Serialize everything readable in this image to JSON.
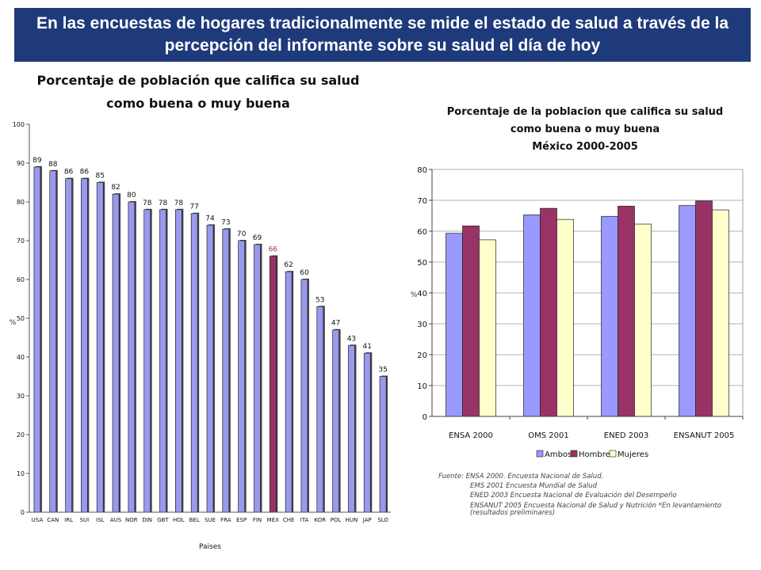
{
  "banner": {
    "text": "En las encuestas de hogares tradicionalmente se mide el estado de salud a través de la percepción del informante sobre su salud el día de hoy"
  },
  "colors": {
    "banner_bg": "#1f3a7a",
    "bar_default": "#9999ee",
    "bar_highlight": "#993366",
    "mex_label": "#993366",
    "ambos": "#9999ff",
    "hombres": "#993366",
    "mujeres": "#ffffcc"
  },
  "chart_data": [
    {
      "type": "bar",
      "title_line1": "Porcentaje de población que califica su salud",
      "title_line2": "como buena o muy buena",
      "xlabel": "Paises",
      "ylabel": "%",
      "ylim": [
        0,
        100
      ],
      "yticks": [
        0,
        10,
        20,
        30,
        40,
        50,
        60,
        70,
        80,
        90,
        100
      ],
      "grid": false,
      "highlight": "MEX",
      "categories": [
        "USA",
        "CAN",
        "IRL",
        "SUI",
        "ISL",
        "AUS",
        "NOR",
        "DIN",
        "GBT",
        "HOL",
        "BEL",
        "SUE",
        "FRA",
        "ESP",
        "FIN",
        "MEX",
        "CHE",
        "ITA",
        "KOR",
        "POL",
        "HUN",
        "JAP",
        "SLO"
      ],
      "values": [
        89,
        88,
        86,
        86,
        85,
        82,
        80,
        78,
        78,
        78,
        77,
        74,
        73,
        70,
        69,
        66,
        62,
        60,
        53,
        47,
        43,
        41,
        35
      ]
    },
    {
      "type": "bar",
      "title_line1": "Porcentaje de la poblacion que califica su salud",
      "title_line2": "como buena o muy buena",
      "title_line3": "México 2000-2005",
      "xlabel": "",
      "ylabel": "%",
      "ylim": [
        0,
        80
      ],
      "yticks": [
        0,
        10,
        20,
        30,
        40,
        50,
        60,
        70,
        80
      ],
      "grid": true,
      "legend": "bottom",
      "categories": [
        "ENSA 2000",
        "OMS 2001",
        "ENED 2003",
        "ENSANUT 2005"
      ],
      "series": [
        {
          "name": "Ambos",
          "values": [
            59.3,
            65.3,
            64.8,
            68.3
          ]
        },
        {
          "name": "Hombres",
          "values": [
            61.7,
            67.4,
            68.1,
            69.8
          ]
        },
        {
          "name": "Mujeres",
          "values": [
            57.2,
            63.8,
            62.3,
            66.9
          ]
        }
      ]
    }
  ],
  "sources": {
    "line1": "Fuente:  ENSA 2000. Encuesta Nacional de Salud.",
    "line2": "EMS 2001 Encuesta Mundial de Salud",
    "line3": "ENED 2003 Encuesta Nacional de Evaluación del Desempeño",
    "line4": "ENSANUT 2005 Encuesta Nacional de Salud y Nutrición *En levantamiento (resultados preliminares)"
  }
}
